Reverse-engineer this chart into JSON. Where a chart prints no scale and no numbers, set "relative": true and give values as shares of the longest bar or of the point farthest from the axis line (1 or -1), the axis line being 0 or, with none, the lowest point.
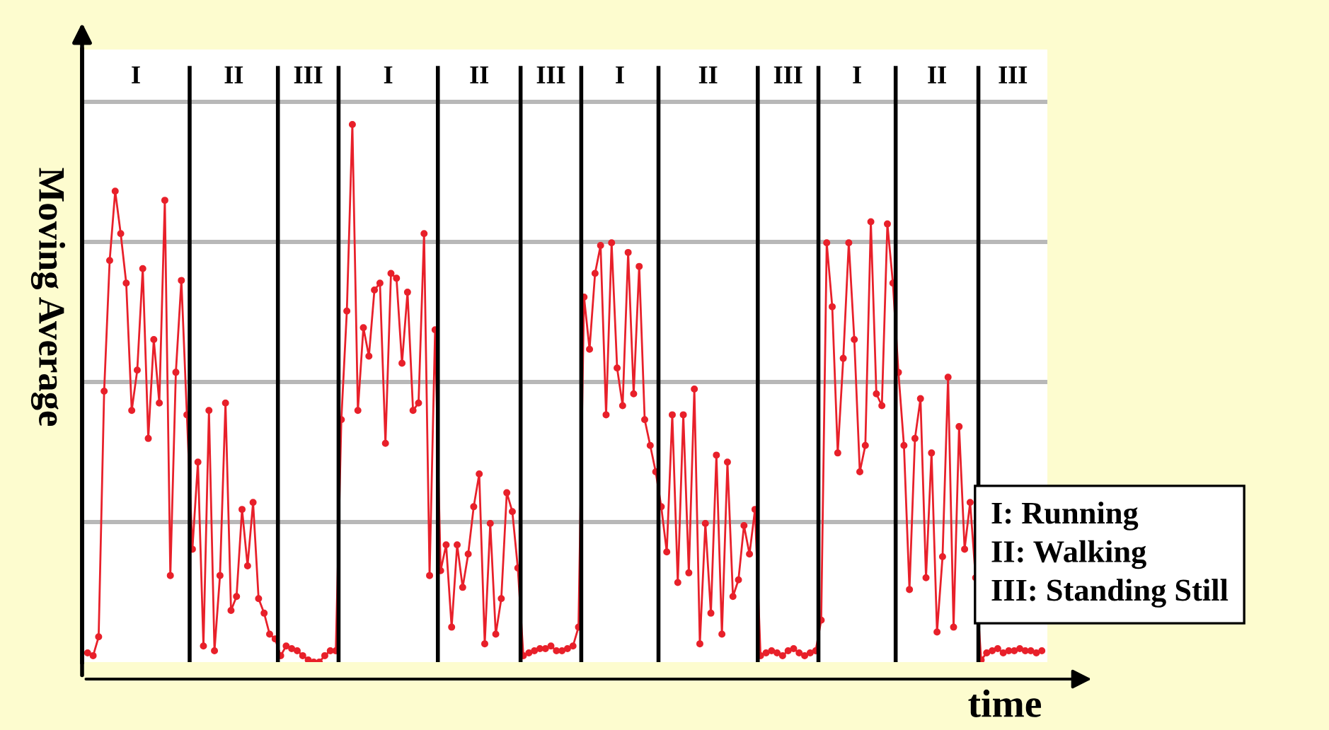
{
  "chart_data": {
    "type": "line",
    "ylabel": "Moving Average",
    "xlabel": "time",
    "relative": true,
    "grid": "y",
    "marker": "circle",
    "line_style": "solid",
    "legend": false,
    "annotations": [
      "I",
      "II",
      "III",
      "I",
      "II",
      "III",
      "I",
      "II",
      "III",
      "I",
      "II",
      "III",
      "I: Running",
      "II: Walking",
      "III: Standing Still"
    ],
    "categories": [
      null,
      null,
      null,
      null,
      null,
      null,
      null,
      null,
      null,
      null,
      null,
      null,
      null,
      null,
      null,
      null,
      null,
      null,
      null,
      null,
      null,
      null,
      null,
      null,
      null,
      null,
      null,
      null,
      null,
      null,
      null,
      null,
      null,
      null,
      null,
      null,
      null,
      null,
      null,
      null,
      null,
      null,
      null,
      null,
      null,
      null,
      null,
      null,
      null,
      null,
      null,
      null,
      null,
      null,
      null,
      null,
      null,
      null,
      null,
      null,
      null,
      null,
      null,
      null,
      null,
      null,
      null,
      null,
      null,
      null,
      null,
      null,
      null,
      null,
      null,
      null,
      null,
      null,
      null,
      null,
      null,
      null,
      null,
      null,
      null,
      null,
      null,
      null,
      null,
      null,
      null,
      null,
      null,
      null,
      null,
      null,
      null,
      null,
      null,
      null,
      null,
      null,
      null,
      null,
      null,
      null,
      null,
      null,
      null,
      null,
      null,
      null,
      null,
      null,
      null,
      null,
      null,
      null,
      null,
      null,
      null,
      null,
      null,
      null,
      null,
      null,
      null,
      null,
      null,
      null,
      null,
      null,
      null,
      null,
      null,
      null,
      null,
      null,
      null,
      null,
      null,
      null,
      null,
      null,
      null,
      null,
      null,
      null,
      null,
      null,
      null,
      null,
      null,
      null,
      null,
      null,
      null,
      null,
      null,
      null,
      null,
      null,
      null,
      null,
      null,
      null,
      null,
      null,
      null,
      null,
      null,
      null,
      null,
      null
    ],
    "series": [
      {
        "color": "#e8202a",
        "values": [
          0.017,
          0.012,
          0.047,
          0.504,
          0.747,
          0.876,
          0.797,
          0.705,
          0.468,
          0.543,
          0.732,
          0.416,
          0.6,
          0.482,
          0.859,
          0.161,
          0.539,
          0.71,
          0.46,
          0.21,
          0.372,
          0.03,
          0.468,
          0.021,
          0.161,
          0.482,
          0.096,
          0.122,
          0.284,
          0.179,
          0.297,
          0.118,
          0.091,
          0.052,
          0.043,
          0.012,
          0.03,
          0.025,
          0.021,
          0.012,
          0.004,
          0,
          0,
          0.012,
          0.021,
          0.021,
          0.451,
          0.653,
          1,
          0.468,
          0.622,
          0.569,
          0.692,
          0.705,
          0.407,
          0.723,
          0.714,
          0.556,
          0.688,
          0.468,
          0.482,
          0.797,
          0.161,
          0.618,
          0.17,
          0.218,
          0.065,
          0.218,
          0.139,
          0.201,
          0.289,
          0.35,
          0.034,
          0.258,
          0.052,
          0.118,
          0.315,
          0.28,
          0.175,
          0.012,
          0.017,
          0.021,
          0.025,
          0.025,
          0.03,
          0.021,
          0.021,
          0.025,
          0.03,
          0.065,
          0.679,
          0.582,
          0.723,
          0.775,
          0.46,
          0.78,
          0.547,
          0.477,
          0.762,
          0.499,
          0.736,
          0.451,
          0.403,
          0.354,
          0.289,
          0.205,
          0.46,
          0.148,
          0.46,
          0.166,
          0.508,
          0.034,
          0.258,
          0.091,
          0.385,
          0.052,
          0.372,
          0.122,
          0.153,
          0.254,
          0.201,
          0.284,
          0.012,
          0.017,
          0.021,
          0.017,
          0.012,
          0.021,
          0.025,
          0.017,
          0.012,
          0.017,
          0.021,
          0.078,
          0.78,
          0.661,
          0.389,
          0.565,
          0.78,
          0.6,
          0.354,
          0.403,
          0.819,
          0.499,
          0.477,
          0.815,
          0.705,
          0.539,
          0.403,
          0.135,
          0.416,
          0.49,
          0.157,
          0.389,
          0.056,
          0.196,
          0.53,
          0.065,
          0.438,
          0.21,
          0.297,
          0.157,
          0.004,
          0.017,
          0.021,
          0.025,
          0.017,
          0.021,
          0.021,
          0.025,
          0.021,
          0.021,
          0.017,
          0.021
        ]
      }
    ]
  }
}
